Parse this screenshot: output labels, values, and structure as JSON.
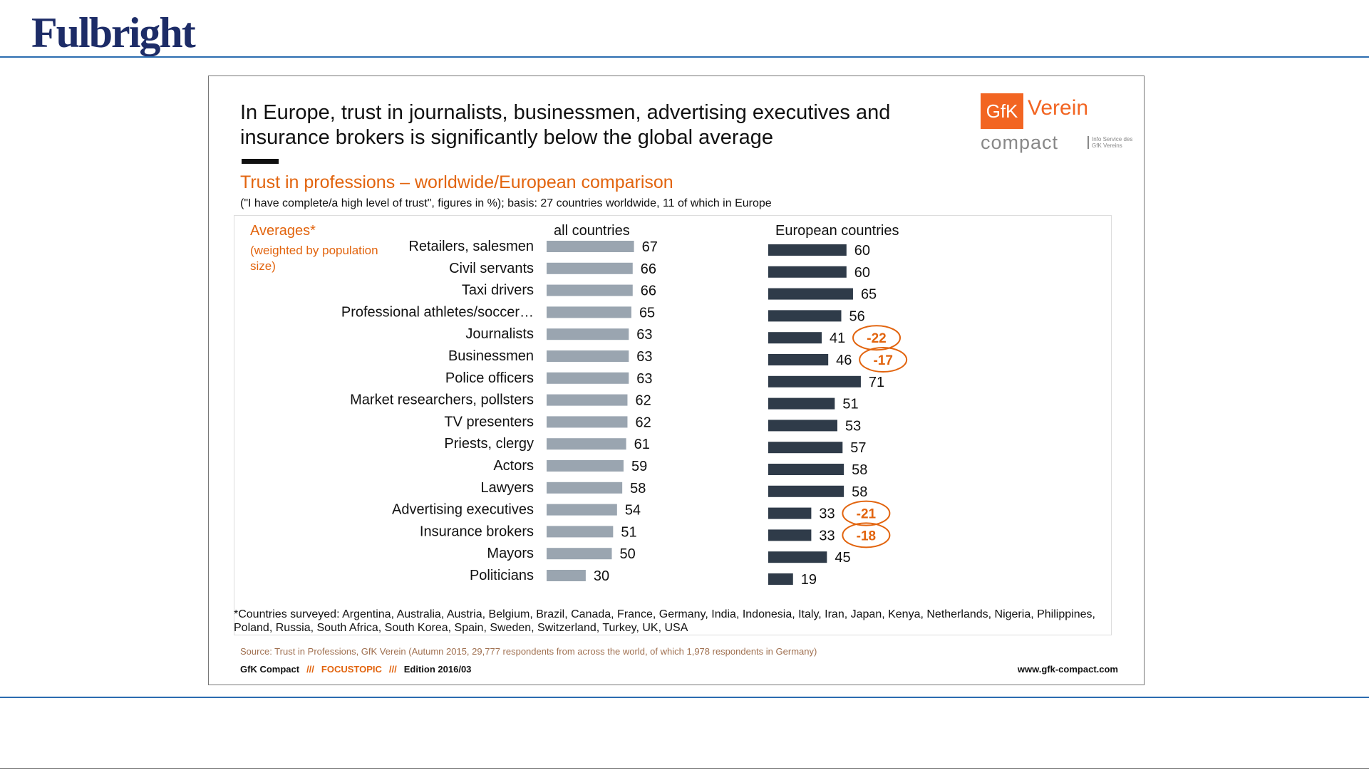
{
  "page": {
    "logo": "Fulbright",
    "headline": "In Europe, trust in journalists, businessmen, advertising executives and insurance brokers is significantly below the global average",
    "brand": {
      "box": "GfK",
      "verein": "Verein",
      "compact": "compact",
      "tiny": "Info Service des GfK Vereins"
    },
    "subtitle": "Trust in professions – worldwide/European comparison",
    "basis": "(\"I have complete/a high level of trust\", figures in %); basis: 27 countries worldwide, 11 of which in Europe",
    "averages_title": "Averages*",
    "averages_note": "(weighted by population size)",
    "footnote": "*Countries surveyed: Argentina, Australia, Austria, Belgium, Brazil, Canada, France, Germany, India, Indonesia, Italy, Iran, Japan, Kenya, Netherlands, Nigeria, Philippines, Poland, Russia, South Africa, South Korea, Spain, Sweden, Switzerland, Turkey, UK, USA",
    "source": "Source: Trust in Professions, GfK Verein (Autumn 2015, 29,777 respondents from across the world, of which 1,978 respondents in Germany)",
    "footer": {
      "left1": "GfK Compact",
      "sep": "///",
      "topic": "FOCUSTOPIC",
      "edition": "Edition 2016/03",
      "url": "www.gfk-compact.com"
    }
  },
  "chart_data": {
    "type": "bar",
    "orientation": "horizontal",
    "categories": [
      "Retailers, salesmen",
      "Civil servants",
      "Taxi drivers",
      "Professional athletes/soccer…",
      "Journalists",
      "Businessmen",
      "Police officers",
      "Market researchers, pollsters",
      "TV presenters",
      "Priests, clergy",
      "Actors",
      "Lawyers",
      "Advertising executives",
      "Insurance brokers",
      "Mayors",
      "Politicians"
    ],
    "series": [
      {
        "name": "all countries",
        "values": [
          67,
          66,
          66,
          65,
          63,
          63,
          63,
          62,
          62,
          61,
          59,
          58,
          54,
          51,
          50,
          30
        ],
        "color": "#9aa5b0"
      },
      {
        "name": "European countries",
        "values": [
          60,
          60,
          65,
          56,
          41,
          46,
          71,
          51,
          53,
          57,
          58,
          58,
          33,
          33,
          45,
          19
        ],
        "color": "#2f3b49"
      }
    ],
    "differences": [
      {
        "category": "Journalists",
        "value": "-22"
      },
      {
        "category": "Businessmen",
        "value": "-17"
      },
      {
        "category": "Advertising executives",
        "value": "-21"
      },
      {
        "category": "Insurance brokers",
        "value": "-18"
      }
    ],
    "highlight_color": "#e2640e",
    "grid": false
  }
}
